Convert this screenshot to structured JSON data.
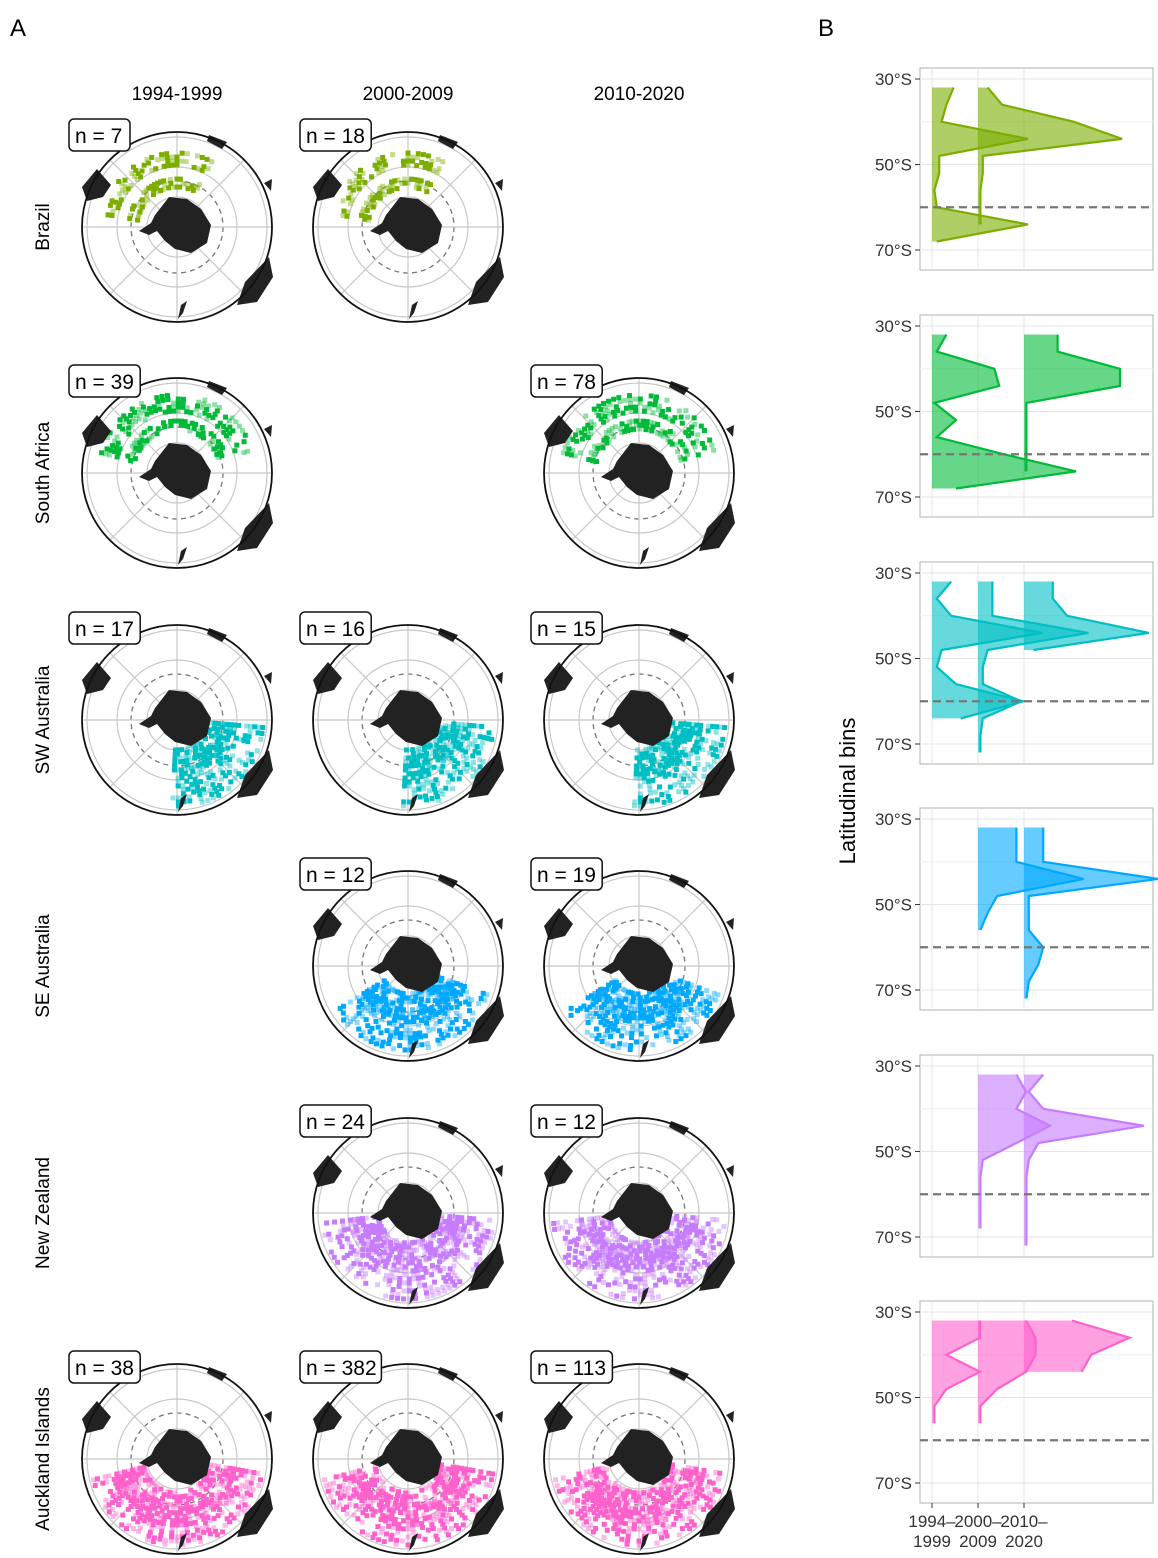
{
  "panel_labels": [
    "A",
    "B"
  ],
  "columns": [
    "1994-1999",
    "2000-2009",
    "2010-2020"
  ],
  "rows": [
    {
      "name": "Brazil",
      "color": "#7CAE00",
      "counts": [
        "n = 7",
        "n = 18",
        null
      ]
    },
    {
      "name": "South Africa",
      "color": "#00BA38",
      "counts": [
        "n = 39",
        null,
        "n = 78"
      ]
    },
    {
      "name": "SW Australia",
      "color": "#00BFC4",
      "counts": [
        "n = 17",
        "n = 16",
        "n = 15"
      ]
    },
    {
      "name": "SE Australia",
      "color": "#00A9FF",
      "counts": [
        null,
        "n = 12",
        "n = 19"
      ]
    },
    {
      "name": "New Zealand",
      "color": "#C77CFF",
      "counts": [
        null,
        "n = 24",
        "n = 12"
      ]
    },
    {
      "name": "Auckland Islands",
      "color": "#FF61CC",
      "counts": [
        "n = 38",
        "n = 382",
        "n = 113"
      ]
    }
  ],
  "chart_data": {
    "type": "area",
    "ylabel": "Latitudinal bins",
    "y_ticks": [
      "30°S",
      "50°S",
      "70°S"
    ],
    "x_tick_labels": [
      [
        "1994–",
        "1999"
      ],
      [
        "2000–",
        "2009"
      ],
      [
        "2010–",
        "2020"
      ]
    ],
    "reference_line_lat": 60,
    "lat_bins": [
      32,
      36,
      40,
      44,
      48,
      52,
      56,
      60,
      64,
      68,
      72
    ],
    "panels": [
      {
        "region": "Brazil",
        "series": [
          {
            "period": 0,
            "lats": [
              32,
              36,
              40,
              44,
              48,
              52,
              56,
              60,
              64,
              68
            ],
            "density": [
              0.45,
              0.3,
              0.2,
              2.0,
              0.15,
              0.15,
              0.05,
              0.1,
              2.0,
              0.1
            ]
          },
          {
            "period": 1,
            "lats": [
              32,
              36,
              40,
              44,
              48,
              52,
              56,
              60,
              64
            ],
            "density": [
              0.2,
              0.5,
              2.0,
              3.0,
              0.1,
              0.1,
              0.05,
              0.05,
              0.05
            ]
          }
        ]
      },
      {
        "region": "South Africa",
        "series": [
          {
            "period": 0,
            "lats": [
              32,
              36,
              40,
              44,
              48,
              52,
              56,
              60,
              64,
              68
            ],
            "density": [
              0.3,
              0.1,
              1.3,
              1.4,
              0.05,
              0.5,
              0.1,
              1.5,
              3.0,
              0.5
            ]
          },
          {
            "period": 2,
            "lats": [
              32,
              36,
              40,
              44,
              48,
              52,
              56,
              60,
              64
            ],
            "density": [
              0.7,
              0.7,
              2.0,
              2.0,
              0.05,
              0.05,
              0.05,
              0.05,
              0.05
            ]
          }
        ]
      },
      {
        "region": "SW Australia",
        "series": [
          {
            "period": 0,
            "lats": [
              32,
              36,
              40,
              44,
              48,
              52,
              56,
              60,
              64
            ],
            "density": [
              0.4,
              0.1,
              0.4,
              2.3,
              0.2,
              0.1,
              0.5,
              1.9,
              0.6
            ]
          },
          {
            "period": 1,
            "lats": [
              32,
              36,
              40,
              44,
              48,
              52,
              56,
              60,
              64,
              68,
              72
            ],
            "density": [
              0.3,
              0.3,
              0.3,
              2.3,
              0.2,
              0.1,
              0.1,
              0.9,
              0.1,
              0.05,
              0.05
            ]
          },
          {
            "period": 2,
            "lats": [
              32,
              36,
              40,
              44,
              48
            ],
            "density": [
              0.6,
              0.6,
              0.9,
              2.6,
              0.2
            ]
          }
        ]
      },
      {
        "region": "SE Australia",
        "series": [
          {
            "period": 1,
            "lats": [
              32,
              36,
              40,
              44,
              48,
              52,
              56
            ],
            "density": [
              0.8,
              0.8,
              0.8,
              2.2,
              0.4,
              0.2,
              0.05
            ]
          },
          {
            "period": 2,
            "lats": [
              32,
              36,
              40,
              44,
              48,
              52,
              56,
              60,
              64,
              68,
              72
            ],
            "density": [
              0.4,
              0.4,
              0.4,
              2.8,
              0.1,
              0.1,
              0.1,
              0.4,
              0.3,
              0.1,
              0.05
            ]
          }
        ]
      },
      {
        "region": "New Zealand",
        "series": [
          {
            "period": 1,
            "lats": [
              32,
              36,
              40,
              44,
              48,
              52,
              56,
              60,
              64,
              68
            ],
            "density": [
              0.8,
              1.0,
              0.8,
              1.5,
              0.8,
              0.1,
              0.05,
              0.05,
              0.05,
              0.05
            ]
          },
          {
            "period": 2,
            "lats": [
              32,
              36,
              40,
              44,
              48,
              52,
              56,
              60,
              64,
              68,
              72
            ],
            "density": [
              0.4,
              0.1,
              0.4,
              2.5,
              0.3,
              0.1,
              0.05,
              0.05,
              0.05,
              0.05,
              0.05
            ]
          }
        ]
      },
      {
        "region": "Auckland Islands",
        "series": [
          {
            "period": 0,
            "lats": [
              32,
              36,
              40,
              44,
              48,
              52,
              56
            ],
            "density": [
              1.0,
              1.0,
              0.3,
              1.0,
              0.3,
              0.05,
              0.05
            ]
          },
          {
            "period": 1,
            "lats": [
              32,
              36,
              40,
              44,
              48,
              52,
              56
            ],
            "density": [
              1.0,
              1.2,
              1.2,
              1.0,
              0.4,
              0.05,
              0.05
            ]
          },
          {
            "period": 2,
            "lats": [
              32,
              36,
              40,
              44
            ],
            "density": [
              1.0,
              2.2,
              1.4,
              1.2
            ]
          }
        ]
      }
    ]
  }
}
